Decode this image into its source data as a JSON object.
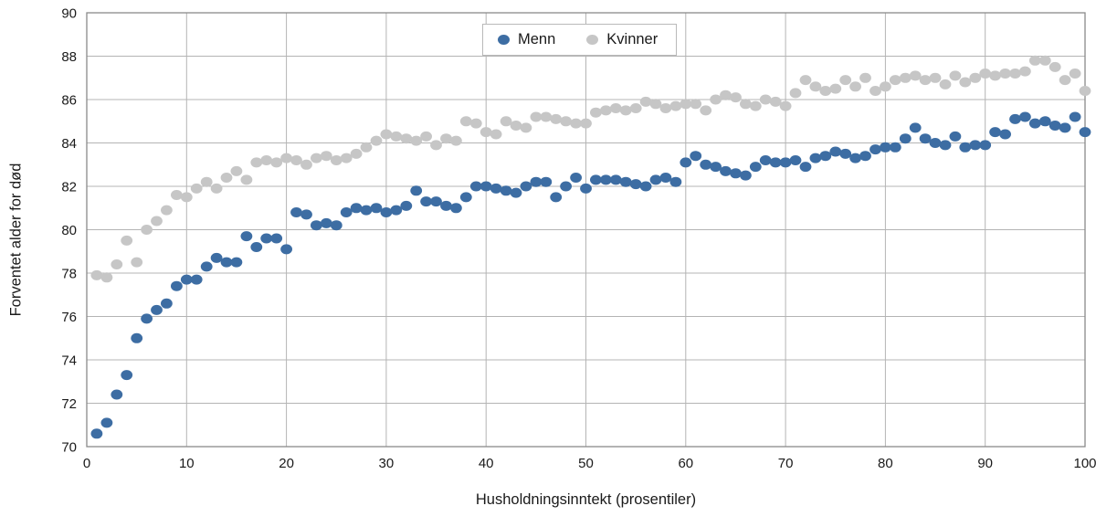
{
  "chart_data": {
    "type": "scatter",
    "title": "",
    "xlabel": "Husholdningsinntekt (prosentiler)",
    "ylabel": "Forventet alder for død",
    "xlim": [
      0,
      100
    ],
    "ylim": [
      70,
      90
    ],
    "x_ticks": [
      0,
      10,
      20,
      30,
      40,
      50,
      60,
      70,
      80,
      90,
      100
    ],
    "y_ticks": [
      70,
      72,
      74,
      76,
      78,
      80,
      82,
      84,
      86,
      88,
      90
    ],
    "grid": true,
    "legend_position": "top-center",
    "x": [
      1,
      2,
      3,
      4,
      5,
      6,
      7,
      8,
      9,
      10,
      11,
      12,
      13,
      14,
      15,
      16,
      17,
      18,
      19,
      20,
      21,
      22,
      23,
      24,
      25,
      26,
      27,
      28,
      29,
      30,
      31,
      32,
      33,
      34,
      35,
      36,
      37,
      38,
      39,
      40,
      41,
      42,
      43,
      44,
      45,
      46,
      47,
      48,
      49,
      50,
      51,
      52,
      53,
      54,
      55,
      56,
      57,
      58,
      59,
      60,
      61,
      62,
      63,
      64,
      65,
      66,
      67,
      68,
      69,
      70,
      71,
      72,
      73,
      74,
      75,
      76,
      77,
      78,
      79,
      80,
      81,
      82,
      83,
      84,
      85,
      86,
      87,
      88,
      89,
      90,
      91,
      92,
      93,
      94,
      95,
      96,
      97,
      98,
      99,
      100
    ],
    "series": [
      {
        "name": "Menn",
        "color": "#3d6da3",
        "values": [
          70.6,
          71.1,
          72.4,
          73.3,
          75.0,
          75.9,
          76.3,
          76.6,
          77.4,
          77.7,
          77.7,
          78.3,
          78.7,
          78.5,
          78.5,
          79.7,
          79.2,
          79.6,
          79.6,
          79.1,
          80.8,
          80.7,
          80.2,
          80.3,
          80.2,
          80.8,
          81.0,
          80.9,
          81.0,
          80.8,
          80.9,
          81.1,
          81.8,
          81.3,
          81.3,
          81.1,
          81.0,
          81.5,
          82.0,
          82.0,
          81.9,
          81.8,
          81.7,
          82.0,
          82.2,
          82.2,
          81.5,
          82.0,
          82.4,
          81.9,
          82.3,
          82.3,
          82.3,
          82.2,
          82.1,
          82.0,
          82.3,
          82.4,
          82.2,
          83.1,
          83.4,
          83.0,
          82.9,
          82.7,
          82.6,
          82.5,
          82.9,
          83.2,
          83.1,
          83.1,
          83.2,
          82.9,
          83.3,
          83.4,
          83.6,
          83.5,
          83.3,
          83.4,
          83.7,
          83.8,
          83.8,
          84.2,
          84.7,
          84.2,
          84.0,
          83.9,
          84.3,
          83.8,
          83.9,
          83.9,
          84.5,
          84.4,
          85.1,
          85.2,
          84.9,
          85.0,
          84.8,
          84.7,
          85.2,
          84.5
        ]
      },
      {
        "name": "Kvinner",
        "color": "#c6c6c6",
        "values": [
          77.9,
          77.8,
          78.4,
          79.5,
          78.5,
          80.0,
          80.4,
          80.9,
          81.6,
          81.5,
          81.9,
          82.2,
          81.9,
          82.4,
          82.7,
          82.3,
          83.1,
          83.2,
          83.1,
          83.3,
          83.2,
          83.0,
          83.3,
          83.4,
          83.2,
          83.3,
          83.5,
          83.8,
          84.1,
          84.4,
          84.3,
          84.2,
          84.1,
          84.3,
          83.9,
          84.2,
          84.1,
          85.0,
          84.9,
          84.5,
          84.4,
          85.0,
          84.8,
          84.7,
          85.2,
          85.2,
          85.1,
          85.0,
          84.9,
          84.9,
          85.4,
          85.5,
          85.6,
          85.5,
          85.6,
          85.9,
          85.8,
          85.6,
          85.7,
          85.8,
          85.8,
          85.5,
          86.0,
          86.2,
          86.1,
          85.8,
          85.7,
          86.0,
          85.9,
          85.7,
          86.3,
          86.9,
          86.6,
          86.4,
          86.5,
          86.9,
          86.6,
          87.0,
          86.4,
          86.6,
          86.9,
          87.0,
          87.1,
          86.9,
          87.0,
          86.7,
          87.1,
          86.8,
          87.0,
          87.2,
          87.1,
          87.2,
          87.2,
          87.3,
          87.8,
          87.8,
          87.5,
          86.9,
          87.2,
          86.4
        ]
      }
    ]
  },
  "colors": {
    "grid": "#b4b4b4",
    "frame": "#8a8a8a",
    "text": "#1a1a1a",
    "menn": "#3d6da3",
    "kvinner": "#c6c6c6"
  }
}
